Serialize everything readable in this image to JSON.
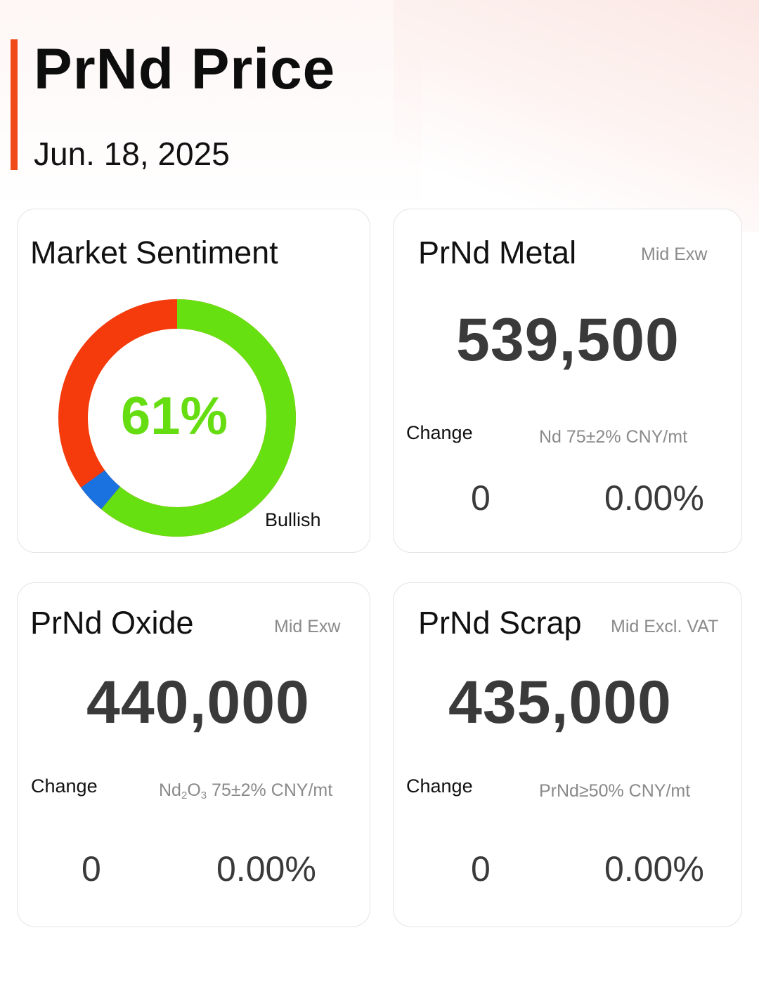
{
  "header": {
    "title": "PrNd Price",
    "date": "Jun. 18, 2025"
  },
  "sentiment": {
    "title": "Market Sentiment",
    "percent_label": "61%",
    "state_label": "Bullish",
    "bullish_fraction": 0.61,
    "neutral_fraction": 0.04,
    "bearish_fraction": 0.35,
    "colors": {
      "bullish": "#66e011",
      "neutral": "#1a72e0",
      "bearish": "#f53a0b"
    }
  },
  "metal": {
    "title": "PrNd Metal",
    "qualifier": "Mid  Exw",
    "price": "539,500",
    "change_label": "Change",
    "spec": "Nd 75±2% CNY/mt",
    "change_abs": "0",
    "change_pct": "0.00%"
  },
  "oxide": {
    "title": "PrNd Oxide",
    "qualifier": "Mid  Exw",
    "price": "440,000",
    "change_label": "Change",
    "spec_parts": {
      "nd": "Nd",
      "sub1": "2",
      "o": "O",
      "sub2": "3",
      "rest": " 75±2% CNY/mt"
    },
    "change_abs": "0",
    "change_pct": "0.00%"
  },
  "scrap": {
    "title": "PrNd Scrap",
    "qualifier": "Mid  Excl. VAT",
    "price": "435,000",
    "change_label": "Change",
    "spec": "PrNd≥50% CNY/mt",
    "change_abs": "0",
    "change_pct": "0.00%"
  },
  "accent_color": "#f04a1a"
}
